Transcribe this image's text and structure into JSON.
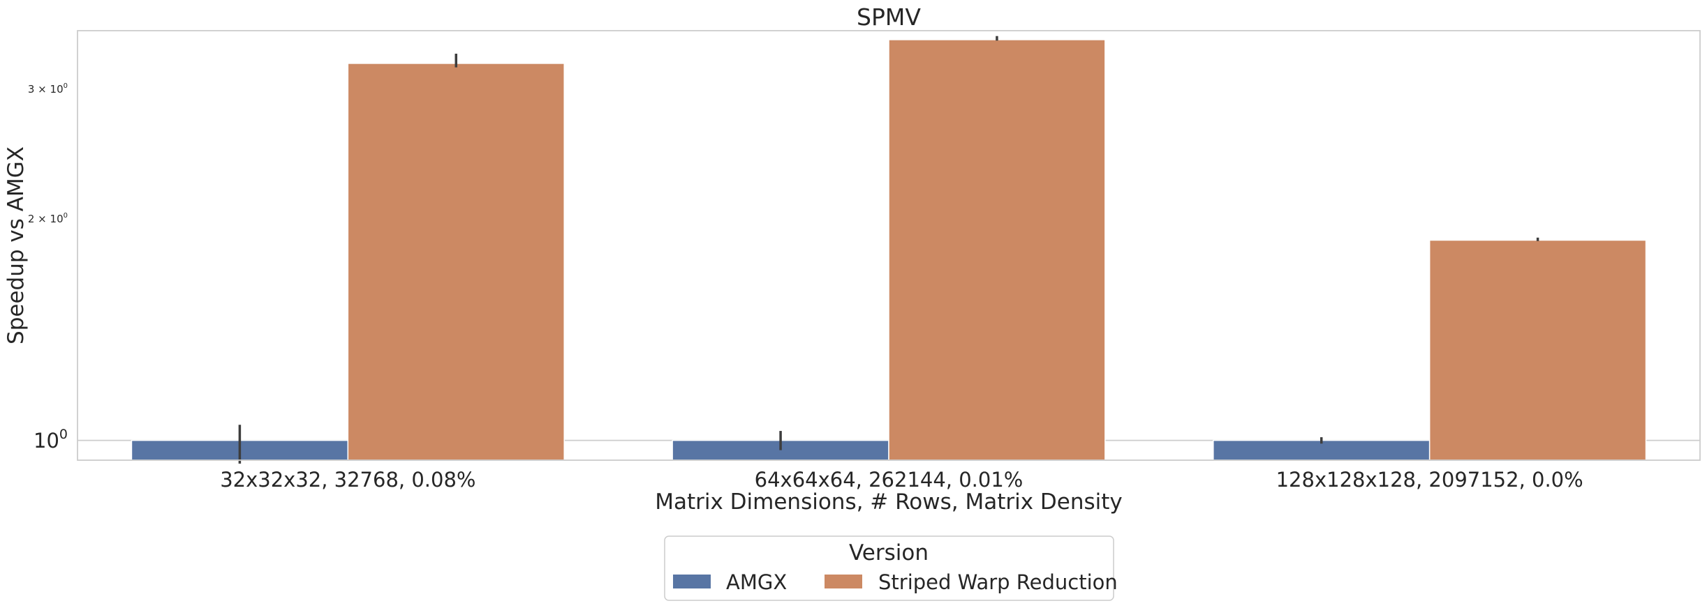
{
  "chart_data": {
    "type": "bar",
    "title": "SPMV",
    "xlabel": "Matrix Dimensions, # Rows, Matrix Density",
    "ylabel": "Speedup vs AMGX",
    "yscale": "log",
    "ylim": [
      0.94,
      3.6
    ],
    "categories": [
      "32x32x32, 32768, 0.08%",
      "64x64x64, 262144, 0.01%",
      "128x128x128, 2097152, 0.0%"
    ],
    "series": [
      {
        "name": "AMGX",
        "color": "#5875a4",
        "values": [
          1.0,
          1.0,
          1.0
        ],
        "err_low": [
          0.93,
          0.97,
          0.99
        ],
        "err_high": [
          1.05,
          1.03,
          1.01
        ]
      },
      {
        "name": "Striped Warp Reduction",
        "color": "#cc8963",
        "values": [
          3.25,
          3.5,
          1.87
        ],
        "err_low": [
          3.21,
          3.49,
          1.865
        ],
        "err_high": [
          3.35,
          3.54,
          1.885
        ]
      }
    ],
    "y_ticks": [
      {
        "value": 1,
        "label": "10",
        "exp": "0",
        "major": true
      },
      {
        "value": 2,
        "label": "2 × 10",
        "exp": "0",
        "major": false
      },
      {
        "value": 3,
        "label": "3 × 10",
        "exp": "0",
        "major": false
      }
    ],
    "grid": true,
    "legend": {
      "title": "Version",
      "placement": "bottom-center"
    }
  }
}
